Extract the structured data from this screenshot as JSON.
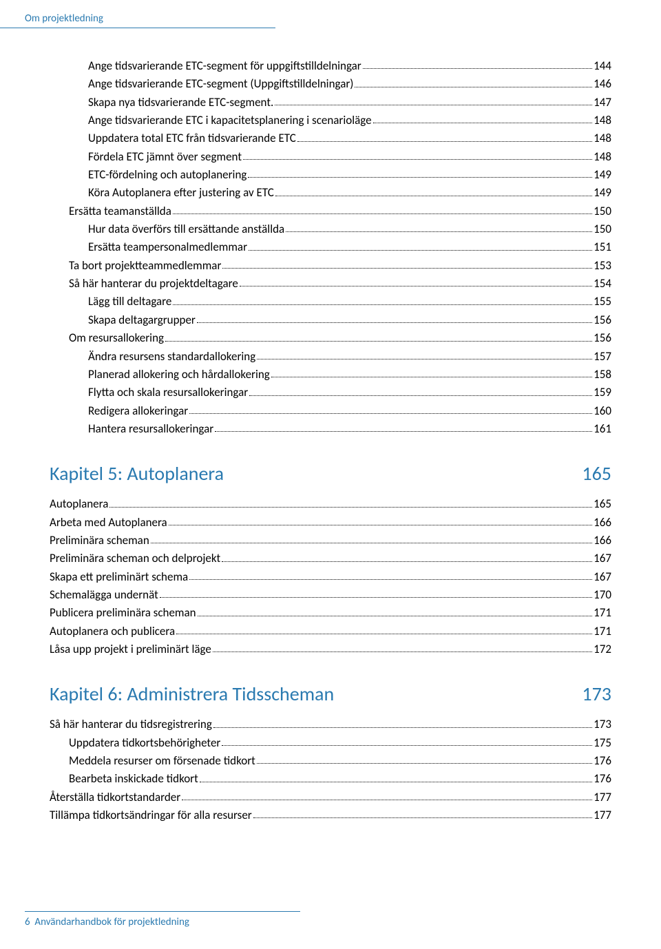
{
  "colors": {
    "accent": "#2a7ab0",
    "text": "#000000",
    "background": "#ffffff"
  },
  "typography": {
    "body_font": "Calibri",
    "body_size_pt": 11,
    "chapter_size_pt": 18
  },
  "header": {
    "text": "Om projektledning"
  },
  "footer": {
    "page_number": "6",
    "title": "Användarhandbok för projektledning"
  },
  "section1": {
    "lines": [
      {
        "level": 3,
        "label": "Ange tidsvarierande ETC-segment för uppgiftstilldelningar",
        "page": "144"
      },
      {
        "level": 3,
        "label": "Ange tidsvarierande ETC-segment (Uppgiftstilldelningar)",
        "page": "146"
      },
      {
        "level": 3,
        "label": "Skapa nya tidsvarierande ETC-segment.",
        "page": "147"
      },
      {
        "level": 3,
        "label": "Ange tidsvarierande ETC i kapacitetsplanering i scenarioläge",
        "page": "148"
      },
      {
        "level": 3,
        "label": "Uppdatera total ETC från tidsvarierande ETC",
        "page": "148"
      },
      {
        "level": 3,
        "label": "Fördela ETC jämnt över segment",
        "page": "148"
      },
      {
        "level": 3,
        "label": "ETC-fördelning och autoplanering",
        "page": "149"
      },
      {
        "level": 3,
        "label": "Köra Autoplanera efter justering av ETC",
        "page": "149"
      },
      {
        "level": 2,
        "label": "Ersätta teamanställda",
        "page": "150"
      },
      {
        "level": 3,
        "label": "Hur data överförs till ersättande anställda",
        "page": "150"
      },
      {
        "level": 3,
        "label": "Ersätta teampersonalmedlemmar",
        "page": "151"
      },
      {
        "level": 2,
        "label": "Ta bort projektteammedlemmar",
        "page": "153"
      },
      {
        "level": 2,
        "label": "Så här hanterar du projektdeltagare",
        "page": "154"
      },
      {
        "level": 3,
        "label": "Lägg till deltagare",
        "page": "155"
      },
      {
        "level": 3,
        "label": "Skapa deltagargrupper",
        "page": "156"
      },
      {
        "level": 2,
        "label": "Om resursallokering",
        "page": "156"
      },
      {
        "level": 3,
        "label": "Ändra resursens standardallokering",
        "page": "157"
      },
      {
        "level": 3,
        "label": "Planerad allokering och hårdallokering",
        "page": "158"
      },
      {
        "level": 3,
        "label": "Flytta och skala resursallokeringar",
        "page": "159"
      },
      {
        "level": 3,
        "label": "Redigera allokeringar",
        "page": "160"
      },
      {
        "level": 3,
        "label": "Hantera resursallokeringar",
        "page": "161"
      }
    ]
  },
  "chapter5": {
    "title": "Kapitel 5: Autoplanera",
    "page": "165",
    "lines": [
      {
        "level": 1,
        "label": "Autoplanera",
        "page": "165"
      },
      {
        "level": 1,
        "label": "Arbeta med Autoplanera",
        "page": "166"
      },
      {
        "level": 1,
        "label": "Preliminära scheman",
        "page": "166"
      },
      {
        "level": 1,
        "label": "Preliminära scheman och delprojekt",
        "page": "167"
      },
      {
        "level": 1,
        "label": "Skapa ett preliminärt schema",
        "page": "167"
      },
      {
        "level": 1,
        "label": "Schemalägga undernät",
        "page": "170"
      },
      {
        "level": 1,
        "label": "Publicera preliminära scheman",
        "page": "171"
      },
      {
        "level": 1,
        "label": "Autoplanera och publicera",
        "page": "171"
      },
      {
        "level": 1,
        "label": "Låsa upp projekt i preliminärt läge",
        "page": "172"
      }
    ]
  },
  "chapter6": {
    "title": "Kapitel 6: Administrera Tidsscheman",
    "page": "173",
    "lines": [
      {
        "level": 1,
        "label": "Så här hanterar du tidsregistrering",
        "page": "173"
      },
      {
        "level": 2,
        "label": "Uppdatera tidkortsbehörigheter",
        "page": "175"
      },
      {
        "level": 2,
        "label": "Meddela resurser om försenade tidkort",
        "page": "176"
      },
      {
        "level": 2,
        "label": "Bearbeta inskickade tidkort",
        "page": "176"
      },
      {
        "level": 1,
        "label": "Återställa tidkortstandarder",
        "page": "177"
      },
      {
        "level": 1,
        "label": "Tillämpa tidkortsändringar för alla resurser",
        "page": "177"
      }
    ]
  }
}
